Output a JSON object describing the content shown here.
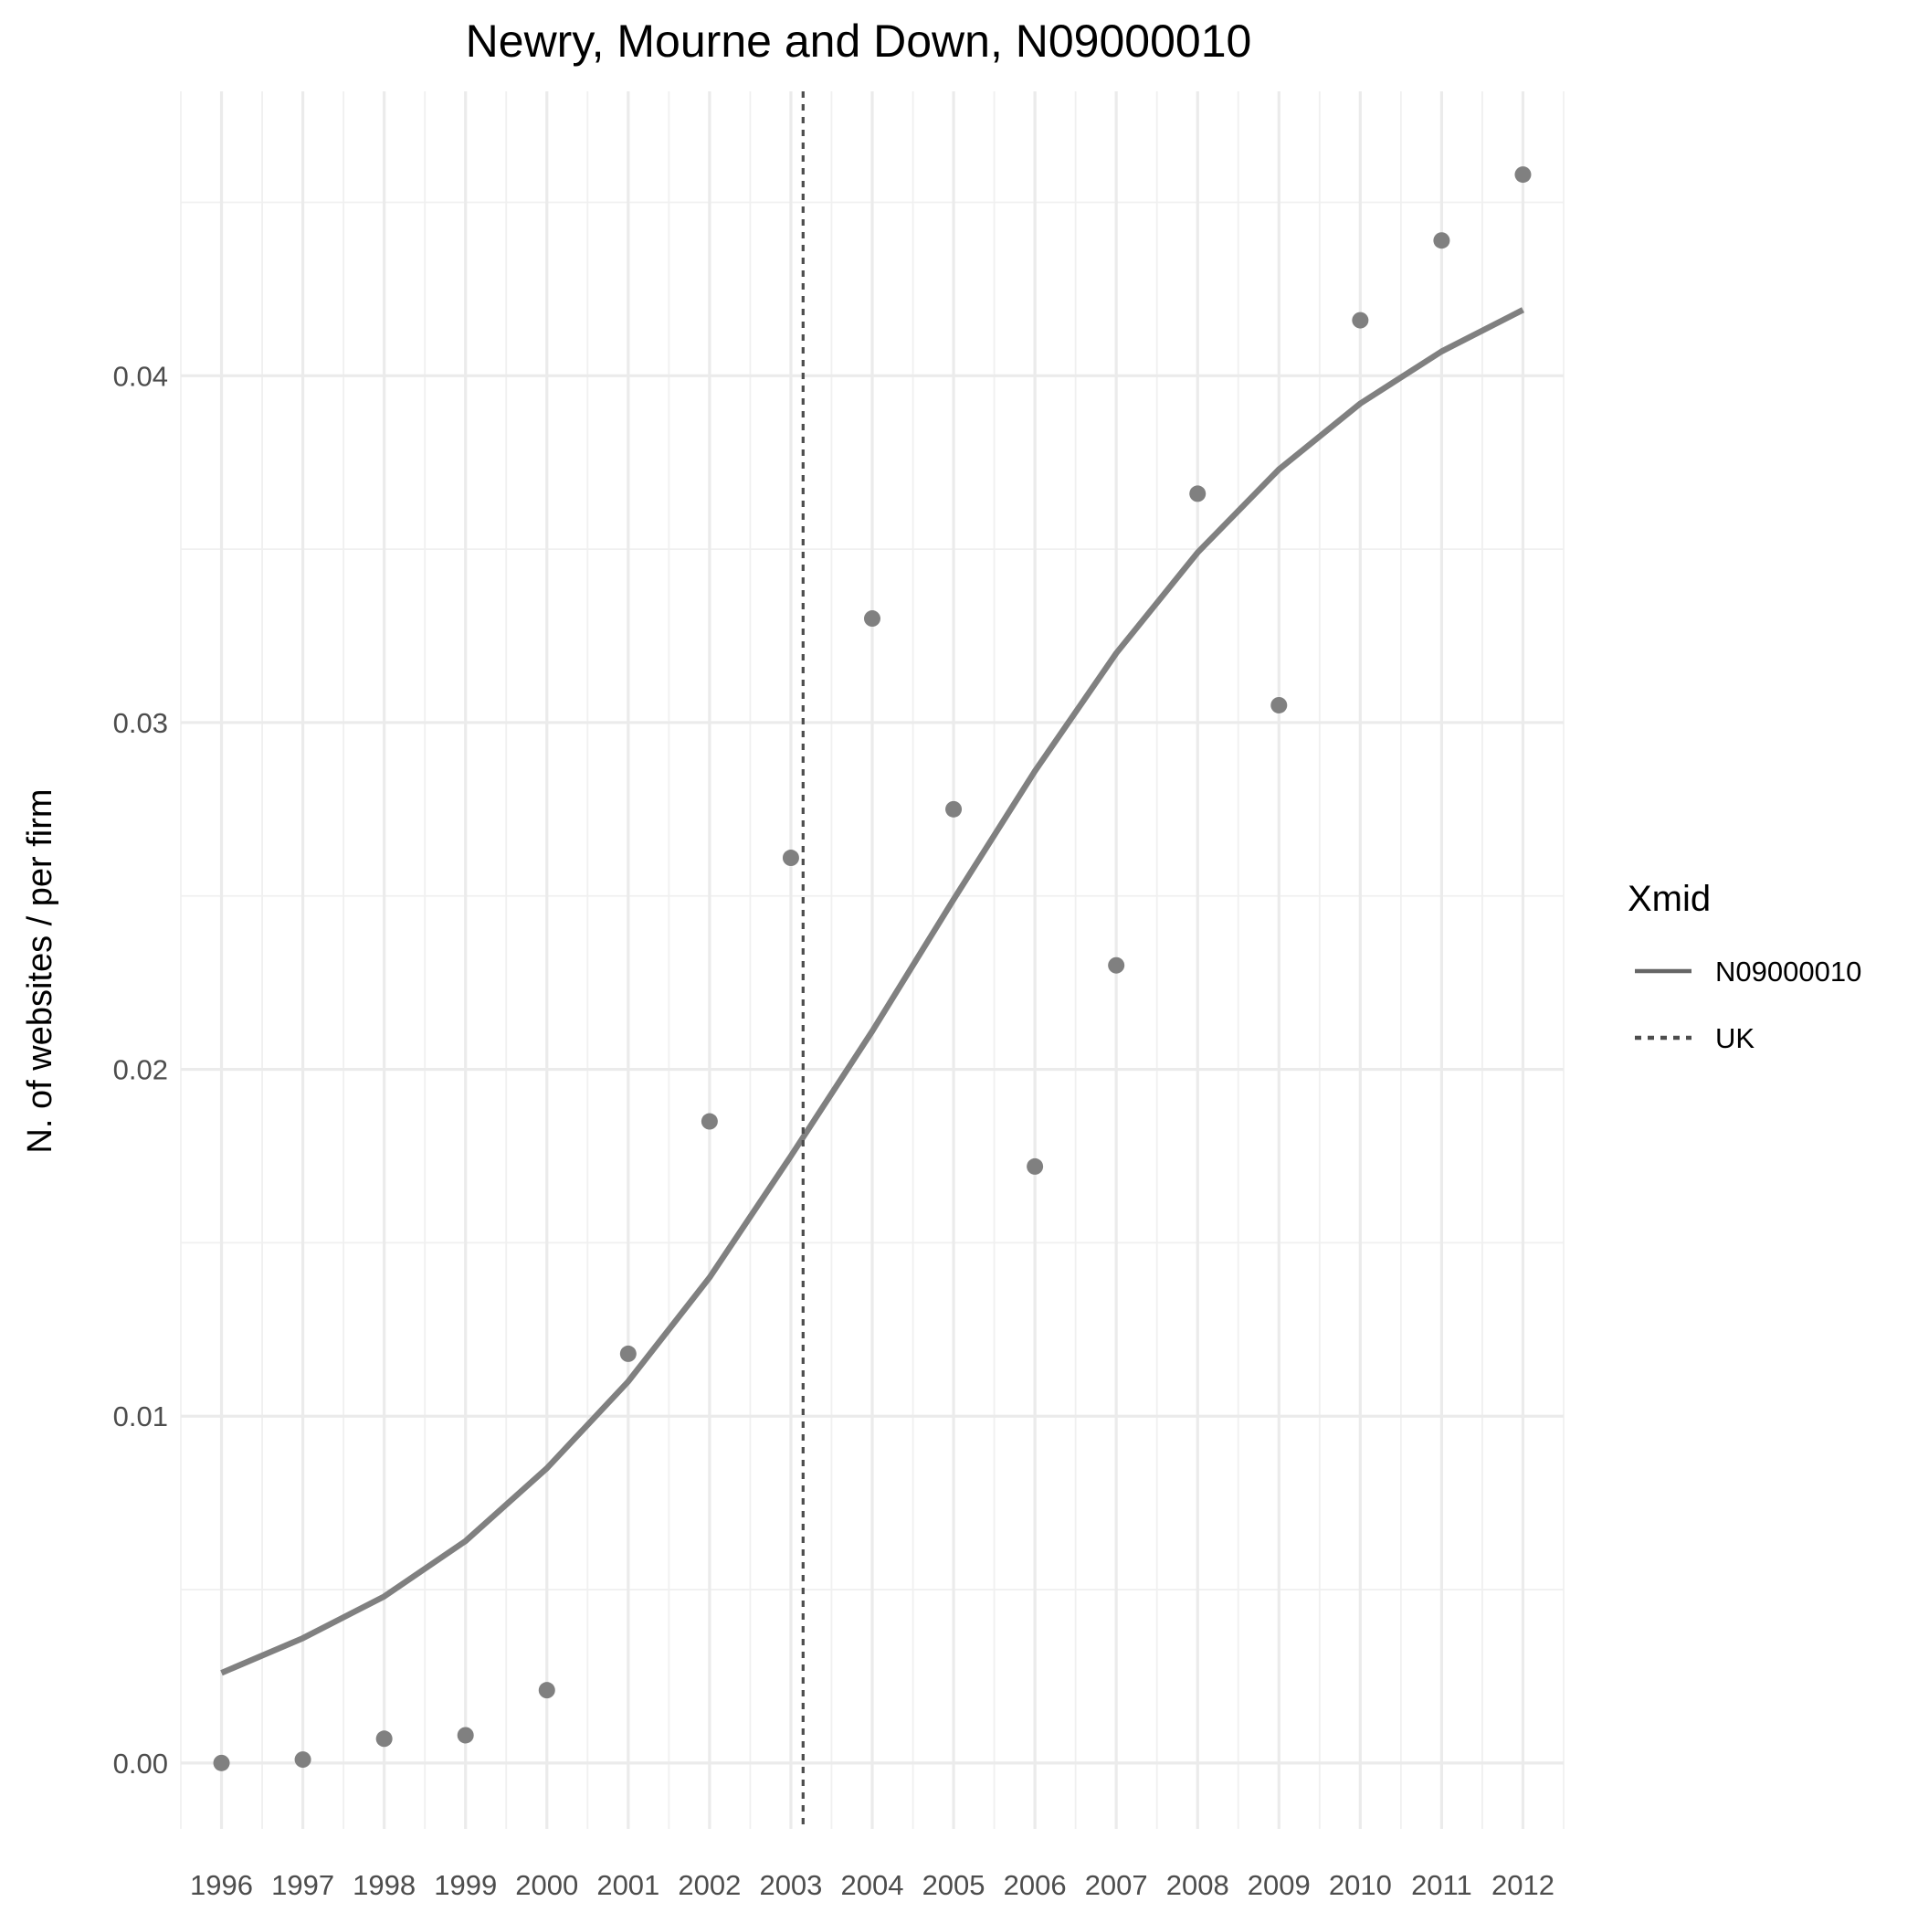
{
  "chart_data": {
    "type": "line",
    "title": "Newry, Mourne and Down, N09000010",
    "xlabel": "",
    "ylabel": "N. of websites / per firm",
    "x": [
      1996,
      1997,
      1998,
      1999,
      2000,
      2001,
      2002,
      2003,
      2004,
      2005,
      2006,
      2007,
      2008,
      2009,
      2010,
      2011,
      2012
    ],
    "x_tick_labels": [
      "1996",
      "1997",
      "1998",
      "1999",
      "2000",
      "2001",
      "2002",
      "2003",
      "2004",
      "2005",
      "2006",
      "2007",
      "2008",
      "2009",
      "2010",
      "2011",
      "2012"
    ],
    "y_ticks": [
      0.0,
      0.01,
      0.02,
      0.03,
      0.04
    ],
    "y_tick_labels": [
      "0.00",
      "0.01",
      "0.02",
      "0.03",
      "0.04"
    ],
    "xlim": [
      1995.5,
      2012.5
    ],
    "ylim": [
      -0.0019,
      0.0482
    ],
    "grid": true,
    "legend_position": "right",
    "legend_title": "Xmid",
    "series": [
      {
        "name": "N09000010",
        "kind": "line",
        "linestyle": "solid",
        "color": "#808080",
        "values": [
          0.0026,
          0.0036,
          0.0048,
          0.0064,
          0.0085,
          0.011,
          0.014,
          0.0175,
          0.0211,
          0.0249,
          0.0286,
          0.032,
          0.0349,
          0.0373,
          0.0392,
          0.0407,
          0.0419
        ]
      },
      {
        "name": "points",
        "kind": "scatter",
        "color": "#808080",
        "values": [
          0.0,
          0.0001,
          0.0007,
          0.0008,
          0.0021,
          0.0118,
          0.0185,
          0.0261,
          0.033,
          0.0275,
          0.0172,
          0.023,
          0.0366,
          0.0305,
          0.0416,
          0.0439,
          0.0458
        ]
      },
      {
        "name": "UK",
        "kind": "vline",
        "linestyle": "dotted",
        "color": "#4d4d4d",
        "x_value": 2003.15
      }
    ],
    "legend_entries": [
      {
        "label": "N09000010",
        "linestyle": "solid",
        "color": "#666666"
      },
      {
        "label": "UK",
        "linestyle": "dotted",
        "color": "#4d4d4d"
      }
    ]
  }
}
